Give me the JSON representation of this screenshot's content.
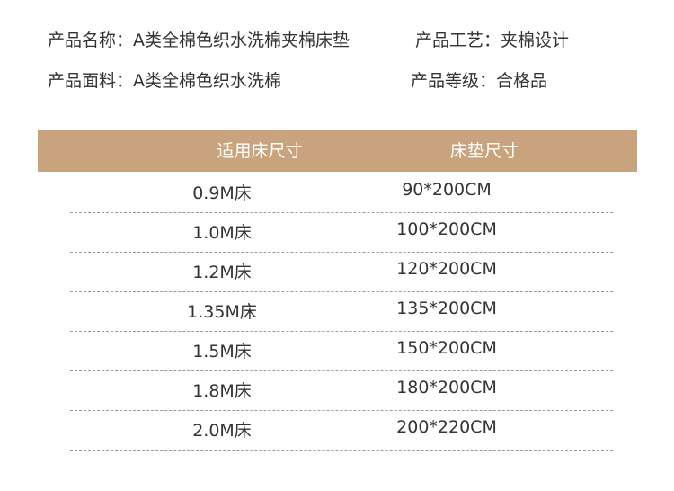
{
  "info": [
    {
      "label": "产品名称：",
      "value": "A类全棉色织水洗棉夹棉床垫"
    },
    {
      "label": "产品工艺：",
      "value": "夹棉设计"
    },
    {
      "label": "产品面料：",
      "value": "A类全棉色织水洗棉"
    },
    {
      "label": "产品等级：",
      "value": "合格品"
    }
  ],
  "table": {
    "header": [
      "适用床尺寸",
      "床垫尺寸"
    ],
    "rows": [
      [
        "0.9M床",
        "90*200CM"
      ],
      [
        "1.0M床",
        "100*200CM"
      ],
      [
        "1.2M床",
        "120*200CM"
      ],
      [
        "1.35M床",
        "135*200CM"
      ],
      [
        "1.5M床",
        "150*200CM"
      ],
      [
        "1.8M床",
        "180*200CM"
      ],
      [
        "2.0M床",
        "200*220CM"
      ]
    ]
  }
}
